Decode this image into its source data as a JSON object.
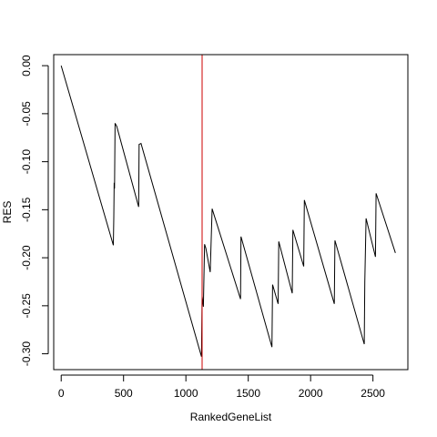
{
  "chart_data": {
    "type": "line",
    "title": "",
    "xlabel": "RankedGeneList",
    "ylabel": "RES",
    "xlim": [
      -60,
      2780
    ],
    "ylim": [
      -0.3165,
      0.0115
    ],
    "x_ticks": [
      0,
      500,
      1000,
      1500,
      2000,
      2500
    ],
    "x_tick_labels": [
      "0",
      "500",
      "1000",
      "1500",
      "2000",
      "2500"
    ],
    "y_ticks": [
      0.0,
      -0.05,
      -0.1,
      -0.15,
      -0.2,
      -0.25,
      -0.3
    ],
    "y_tick_labels": [
      "0.00",
      "-0.05",
      "-0.10",
      "-0.15",
      "-0.20",
      "-0.25",
      "-0.30"
    ],
    "grid": false,
    "legend": "none",
    "line_color": "#000000",
    "series": [
      {
        "x": [
          0,
          418,
          422,
          425,
          428,
          432,
          440,
          445,
          621,
          625,
          640,
          1125,
          1130,
          1140,
          1150,
          1160,
          1195,
          1210,
          1438,
          1442,
          1690,
          1695,
          1740,
          1745,
          1853,
          1858,
          1945,
          1950,
          2190,
          2195,
          2430,
          2435,
          2445,
          2520,
          2525,
          2680
        ],
        "y": [
          0.0,
          -0.187,
          -0.158,
          -0.122,
          -0.128,
          -0.06,
          -0.062,
          -0.063,
          -0.147,
          -0.082,
          -0.081,
          -0.303,
          -0.24,
          -0.251,
          -0.186,
          -0.19,
          -0.215,
          -0.149,
          -0.243,
          -0.178,
          -0.293,
          -0.228,
          -0.248,
          -0.183,
          -0.237,
          -0.171,
          -0.209,
          -0.14,
          -0.248,
          -0.182,
          -0.29,
          -0.225,
          -0.159,
          -0.199,
          -0.133,
          -0.195
        ]
      }
    ],
    "reference_line": {
      "x": 1130,
      "color": "#cc0000"
    }
  }
}
